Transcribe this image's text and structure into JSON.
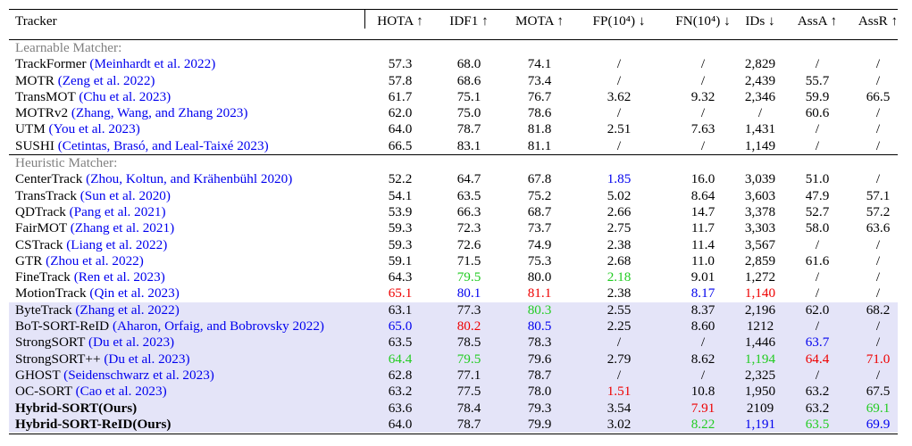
{
  "colors": {
    "red": "#ee0000",
    "green": "#22cc22",
    "blue": "#0000ee",
    "highlight": "#e4e4f8",
    "section": "#808080"
  },
  "header": {
    "tracker": "Tracker",
    "cols": [
      "HOTA ↑",
      "IDF1 ↑",
      "MOTA ↑",
      "FP(10⁴) ↓",
      "FN(10⁴) ↓",
      "IDs ↓",
      "AssA ↑",
      "AssR ↑"
    ]
  },
  "sections": [
    {
      "title": "Learnable Matcher:",
      "rows": [
        {
          "name": "TrackFormer",
          "cite": "(Meinhardt et al. 2022)",
          "vals": [
            "57.3",
            "68.0",
            "74.1",
            "/",
            "/",
            "2,829",
            "/",
            "/"
          ]
        },
        {
          "name": "MOTR",
          "cite": "(Zeng et al. 2022)",
          "vals": [
            "57.8",
            "68.6",
            "73.4",
            "/",
            "/",
            "2,439",
            "55.7",
            "/"
          ]
        },
        {
          "name": "TransMOT",
          "cite": "(Chu et al. 2023)",
          "vals": [
            "61.7",
            "75.1",
            "76.7",
            "3.62",
            "9.32",
            "2,346",
            "59.9",
            "66.5"
          ]
        },
        {
          "name": "MOTRv2",
          "cite": "(Zhang, Wang, and Zhang 2023)",
          "vals": [
            "62.0",
            "75.0",
            "78.6",
            "/",
            "/",
            "/",
            "60.6",
            "/"
          ]
        },
        {
          "name": "UTM",
          "cite": "(You et al. 2023)",
          "vals": [
            "64.0",
            "78.7",
            "81.8",
            "2.51",
            "7.63",
            "1,431",
            "/",
            "/"
          ]
        },
        {
          "name": "SUSHI",
          "cite": "(Cetintas, Brasó, and Leal-Taixé 2023)",
          "vals": [
            "66.5",
            "83.1",
            "81.1",
            "/",
            "/",
            "1,149",
            "/",
            "/"
          ]
        }
      ]
    },
    {
      "title": "Heuristic Matcher:",
      "rows": [
        {
          "name": "CenterTrack",
          "cite": "(Zhou, Koltun, and Krähenbühl 2020)",
          "vals": [
            "52.2",
            "64.7",
            "67.8",
            "1.85",
            "16.0",
            "3,039",
            "51.0",
            "/"
          ],
          "colors": {
            "3": "blue"
          }
        },
        {
          "name": "TransTrack",
          "cite": "(Sun et al. 2020)",
          "vals": [
            "54.1",
            "63.5",
            "75.2",
            "5.02",
            "8.64",
            "3,603",
            "47.9",
            "57.1"
          ]
        },
        {
          "name": "QDTrack",
          "cite": "(Pang et al. 2021)",
          "vals": [
            "53.9",
            "66.3",
            "68.7",
            "2.66",
            "14.7",
            "3,378",
            "52.7",
            "57.2"
          ]
        },
        {
          "name": "FairMOT",
          "cite": "(Zhang et al. 2021)",
          "vals": [
            "59.3",
            "72.3",
            "73.7",
            "2.75",
            "11.7",
            "3,303",
            "58.0",
            "63.6"
          ]
        },
        {
          "name": "CSTrack",
          "cite": "(Liang et al. 2022)",
          "vals": [
            "59.3",
            "72.6",
            "74.9",
            "2.38",
            "11.4",
            "3,567",
            "/",
            "/"
          ]
        },
        {
          "name": "GTR",
          "cite": "(Zhou et al. 2022)",
          "vals": [
            "59.1",
            "71.5",
            "75.3",
            "2.68",
            "11.0",
            "2,859",
            "61.6",
            "/"
          ]
        },
        {
          "name": "FineTrack",
          "cite": "(Ren et al. 2023)",
          "vals": [
            "64.3",
            "79.5",
            "80.0",
            "2.18",
            "9.01",
            "1,272",
            "/",
            "/"
          ],
          "colors": {
            "1": "green",
            "3": "green"
          }
        },
        {
          "name": "MotionTrack",
          "cite": "(Qin et al. 2023)",
          "vals": [
            "65.1",
            "80.1",
            "81.1",
            "2.38",
            "8.17",
            "1,140",
            "/",
            "/"
          ],
          "colors": {
            "0": "red",
            "1": "blue",
            "2": "red",
            "4": "blue",
            "5": "red"
          }
        },
        {
          "name": "ByteTrack",
          "cite": "(Zhang et al. 2022)",
          "vals": [
            "63.1",
            "77.3",
            "80.3",
            "2.55",
            "8.37",
            "2,196",
            "62.0",
            "68.2"
          ],
          "colors": {
            "2": "green"
          },
          "hl": true
        },
        {
          "name": "BoT-SORT-ReID",
          "cite": "(Aharon, Orfaig, and Bobrovsky 2022)",
          "vals": [
            "65.0",
            "80.2",
            "80.5",
            "2.25",
            "8.60",
            "1212",
            "/",
            "/"
          ],
          "colors": {
            "0": "blue",
            "1": "red",
            "2": "blue"
          },
          "hl": true
        },
        {
          "name": "StrongSORT",
          "cite": "(Du et al. 2023)",
          "vals": [
            "63.5",
            "78.5",
            "78.3",
            "/",
            "/",
            "1,446",
            "63.7",
            "/"
          ],
          "colors": {
            "6": "blue"
          },
          "hl": true
        },
        {
          "name": "StrongSORT++",
          "cite": "(Du et al. 2023)",
          "vals": [
            "64.4",
            "79.5",
            "79.6",
            "2.79",
            "8.62",
            "1,194",
            "64.4",
            "71.0"
          ],
          "colors": {
            "0": "green",
            "1": "green",
            "5": "green",
            "6": "red",
            "7": "red"
          },
          "hl": true
        },
        {
          "name": "GHOST",
          "cite": "(Seidenschwarz et al. 2023)",
          "vals": [
            "62.8",
            "77.1",
            "78.7",
            "/",
            "/",
            "2,325",
            "/",
            "/"
          ],
          "hl": true
        },
        {
          "name": "OC-SORT",
          "cite": "(Cao et al. 2023)",
          "vals": [
            "63.2",
            "77.5",
            "78.0",
            "1.51",
            "10.8",
            "1,950",
            "63.2",
            "67.5"
          ],
          "colors": {
            "3": "red"
          },
          "hl": true
        },
        {
          "name": "Hybrid-SORT(Ours)",
          "cite": "",
          "vals": [
            "63.6",
            "78.4",
            "79.3",
            "3.54",
            "7.91",
            "2109",
            "63.2",
            "69.1"
          ],
          "colors": {
            "4": "red",
            "7": "green"
          },
          "hl": true,
          "bold": true
        },
        {
          "name": "Hybrid-SORT-ReID(Ours)",
          "cite": "",
          "vals": [
            "64.0",
            "78.7",
            "79.9",
            "3.02",
            "8.22",
            "1,191",
            "63.5",
            "69.9"
          ],
          "colors": {
            "4": "green",
            "5": "blue",
            "6": "green",
            "7": "blue"
          },
          "hl": true,
          "bold": true
        }
      ]
    }
  ]
}
